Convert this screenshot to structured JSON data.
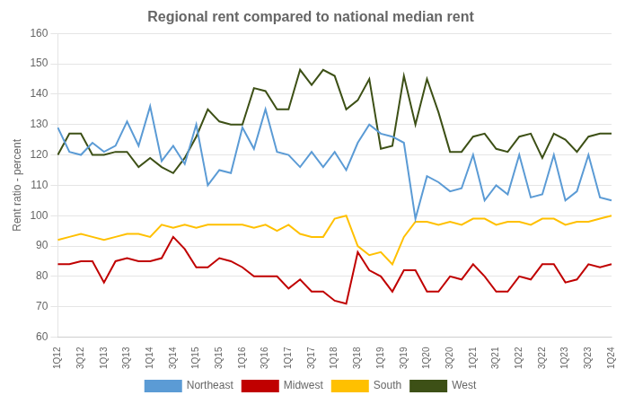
{
  "chart_data": {
    "type": "line",
    "title": "Regional rent compared to national median rent",
    "ylabel": "Rent ratio - percent",
    "categories": [
      "1Q12",
      null,
      "3Q12",
      null,
      "1Q13",
      null,
      "3Q13",
      null,
      "1Q14",
      null,
      "3Q14",
      null,
      "1Q15",
      null,
      "3Q15",
      null,
      "1Q16",
      null,
      "3Q16",
      null,
      "1Q17",
      null,
      "3Q17",
      null,
      "1Q18",
      null,
      "3Q18",
      null,
      "1Q19",
      null,
      "3Q19",
      null,
      "1Q20",
      null,
      "3Q20",
      null,
      "1Q21",
      null,
      "3Q21",
      null,
      "1Q22",
      null,
      "3Q22",
      null,
      "1Q23",
      null,
      "3Q23",
      null,
      "1Q24"
    ],
    "series": [
      {
        "name": "Northeast",
        "color": "#5b9bd5",
        "values": [
          129,
          121,
          120,
          124,
          121,
          123,
          131,
          123,
          136,
          118,
          123,
          117,
          130,
          110,
          115,
          114,
          129,
          122,
          135,
          121,
          120,
          116,
          121,
          116,
          121,
          115,
          124,
          130,
          127,
          126,
          124,
          99,
          113,
          111,
          108,
          109,
          120,
          105,
          110,
          107,
          120,
          106,
          107,
          120,
          105,
          108,
          120,
          106,
          105
        ]
      },
      {
        "name": "Midwest",
        "color": "#c00000",
        "values": [
          84,
          84,
          85,
          85,
          78,
          85,
          86,
          85,
          85,
          86,
          93,
          89,
          83,
          83,
          86,
          85,
          83,
          80,
          80,
          80,
          76,
          79,
          75,
          75,
          72,
          71,
          88,
          82,
          80,
          75,
          82,
          82,
          75,
          75,
          80,
          79,
          84,
          80,
          75,
          75,
          80,
          79,
          84,
          84,
          78,
          79,
          84,
          83,
          84
        ]
      },
      {
        "name": "South",
        "color": "#ffc000",
        "values": [
          92,
          93,
          94,
          93,
          92,
          93,
          94,
          94,
          93,
          97,
          96,
          97,
          96,
          97,
          97,
          97,
          97,
          96,
          97,
          95,
          97,
          94,
          93,
          93,
          99,
          100,
          90,
          87,
          88,
          84,
          93,
          98,
          98,
          97,
          98,
          97,
          99,
          99,
          97,
          98,
          98,
          97,
          99,
          99,
          97,
          98,
          98,
          99,
          100
        ]
      },
      {
        "name": "West",
        "color": "#3d5016",
        "values": [
          120,
          127,
          127,
          120,
          120,
          121,
          121,
          116,
          119,
          116,
          114,
          119,
          126,
          135,
          131,
          130,
          130,
          142,
          141,
          135,
          135,
          148,
          143,
          148,
          146,
          135,
          138,
          145,
          122,
          123,
          146,
          130,
          145,
          134,
          121,
          121,
          126,
          127,
          122,
          121,
          126,
          127,
          119,
          127,
          125,
          121,
          126,
          127,
          127
        ]
      }
    ],
    "ylim": [
      60,
      160
    ],
    "yticks": [
      60,
      70,
      80,
      90,
      100,
      110,
      120,
      130,
      140,
      150,
      160
    ],
    "grid": true,
    "legend": "bottom"
  }
}
